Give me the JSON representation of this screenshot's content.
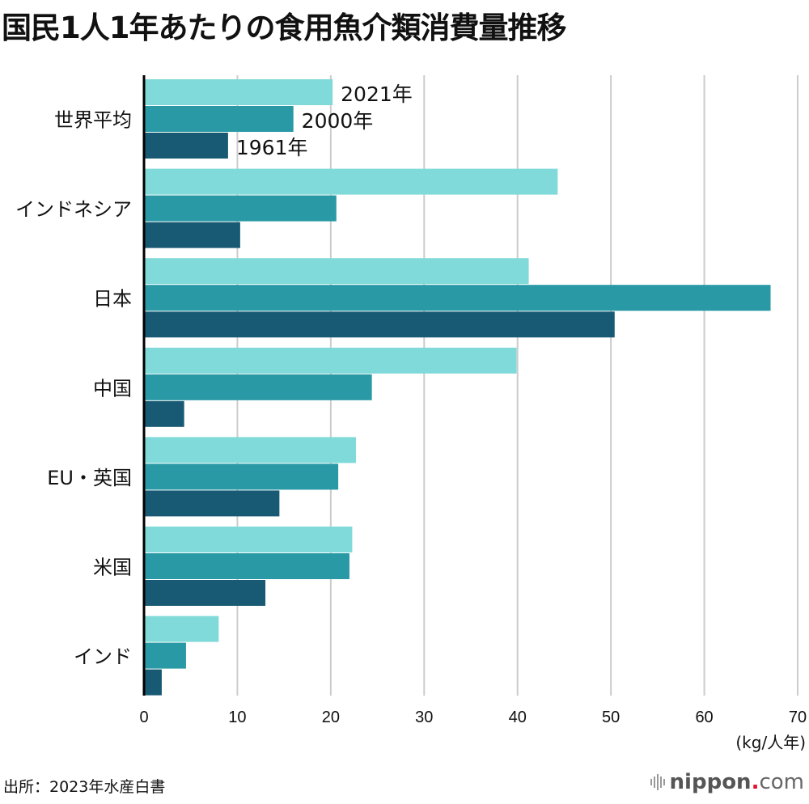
{
  "title": "国民1人1年あたりの食用魚介類消費量推移",
  "source": "出所：2023年水産白書",
  "logo": {
    "main": "nippon",
    "dot": ".",
    "suffix": "com"
  },
  "colors": {
    "s2021": "#7fdad9",
    "s2000": "#2899a5",
    "s1961": "#185a73",
    "grid": "#cccccc",
    "axis": "#000000"
  },
  "chart_data": {
    "type": "bar",
    "orientation": "horizontal",
    "title": "国民1人1年あたりの食用魚介類消費量推移",
    "categories": [
      "世界平均",
      "インドネシア",
      "日本",
      "中国",
      "EU・英国",
      "米国",
      "インド"
    ],
    "series": [
      {
        "name": "2021年",
        "values": [
          20.2,
          44.3,
          41.2,
          39.9,
          22.7,
          22.3,
          8.0
        ]
      },
      {
        "name": "2000年",
        "values": [
          16.0,
          20.6,
          67.1,
          24.4,
          20.8,
          22.0,
          4.5
        ]
      },
      {
        "name": "1961年",
        "values": [
          9.0,
          10.3,
          50.4,
          4.3,
          14.5,
          13.0,
          1.9
        ]
      }
    ],
    "xlabel": "(kg/人年)",
    "ylabel": "",
    "xlim": [
      0,
      70
    ],
    "xticks": [
      "0",
      "10",
      "20",
      "30",
      "40",
      "50",
      "60",
      "70"
    ],
    "grid": true,
    "legend": "inline-labels-on-first-category"
  }
}
